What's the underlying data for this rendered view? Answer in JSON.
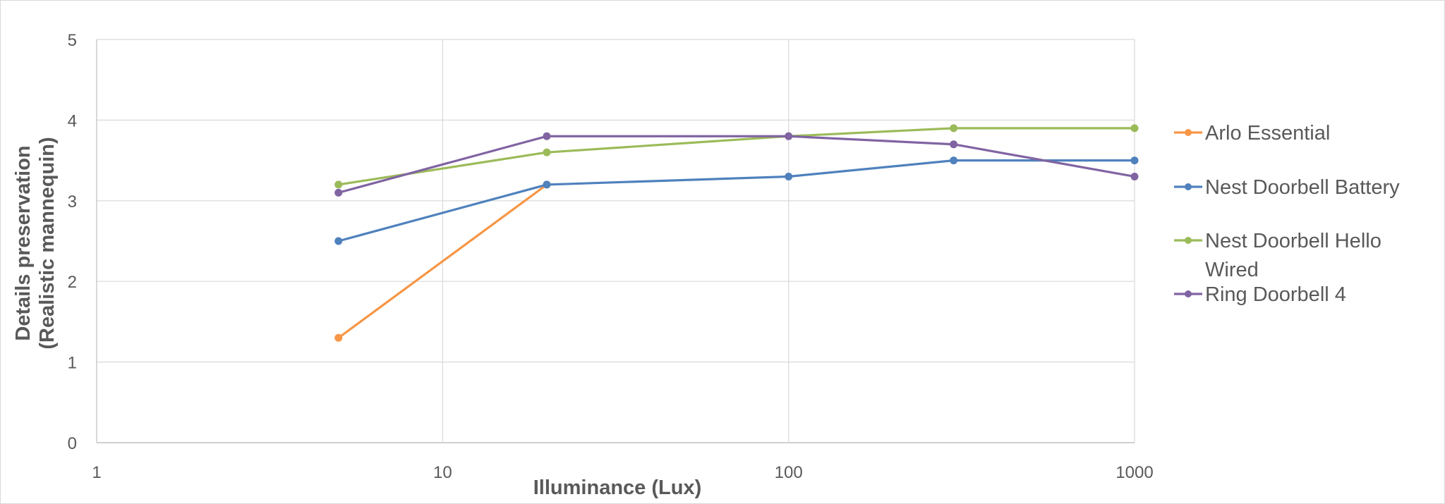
{
  "chart_data": {
    "type": "line",
    "title": "",
    "xlabel": "Illuminance (Lux)",
    "ylabel": "Details preservation (Realistic mannequin)",
    "ylabel_lines": [
      "Details preservation",
      "(Realistic mannequin)"
    ],
    "x_scale": "log",
    "xlim": [
      1,
      1000
    ],
    "ylim": [
      0,
      5
    ],
    "x_ticks": [
      "1",
      "10",
      "100",
      "1000"
    ],
    "y_ticks": [
      "0",
      "1",
      "2",
      "3",
      "4",
      "5"
    ],
    "grid": true,
    "legend_position": "right",
    "x": [
      5,
      20,
      100,
      300,
      1000
    ],
    "series": [
      {
        "name": "Arlo Essential",
        "color": "#F79646",
        "values": [
          1.3,
          3.2,
          null,
          null,
          null
        ]
      },
      {
        "name": "Nest Doorbell Battery",
        "color": "#4F81BD",
        "values": [
          2.5,
          3.2,
          3.3,
          3.5,
          3.5
        ]
      },
      {
        "name": "Nest Doorbell Hello Wired",
        "color": "#9BBB59",
        "values": [
          3.2,
          3.6,
          3.8,
          3.9,
          3.9
        ]
      },
      {
        "name": "Ring Doorbell 4",
        "color": "#8064A2",
        "values": [
          3.1,
          3.8,
          3.8,
          3.7,
          3.3
        ]
      }
    ]
  },
  "legend": {
    "items": [
      {
        "label_lines": [
          "Arlo Essential"
        ],
        "color": "#F79646"
      },
      {
        "label_lines": [
          "Nest Doorbell Battery"
        ],
        "color": "#4F81BD"
      },
      {
        "label_lines": [
          "Nest Doorbell Hello",
          "Wired"
        ],
        "color": "#9BBB59"
      },
      {
        "label_lines": [
          "Ring Doorbell 4"
        ],
        "color": "#8064A2"
      }
    ]
  }
}
